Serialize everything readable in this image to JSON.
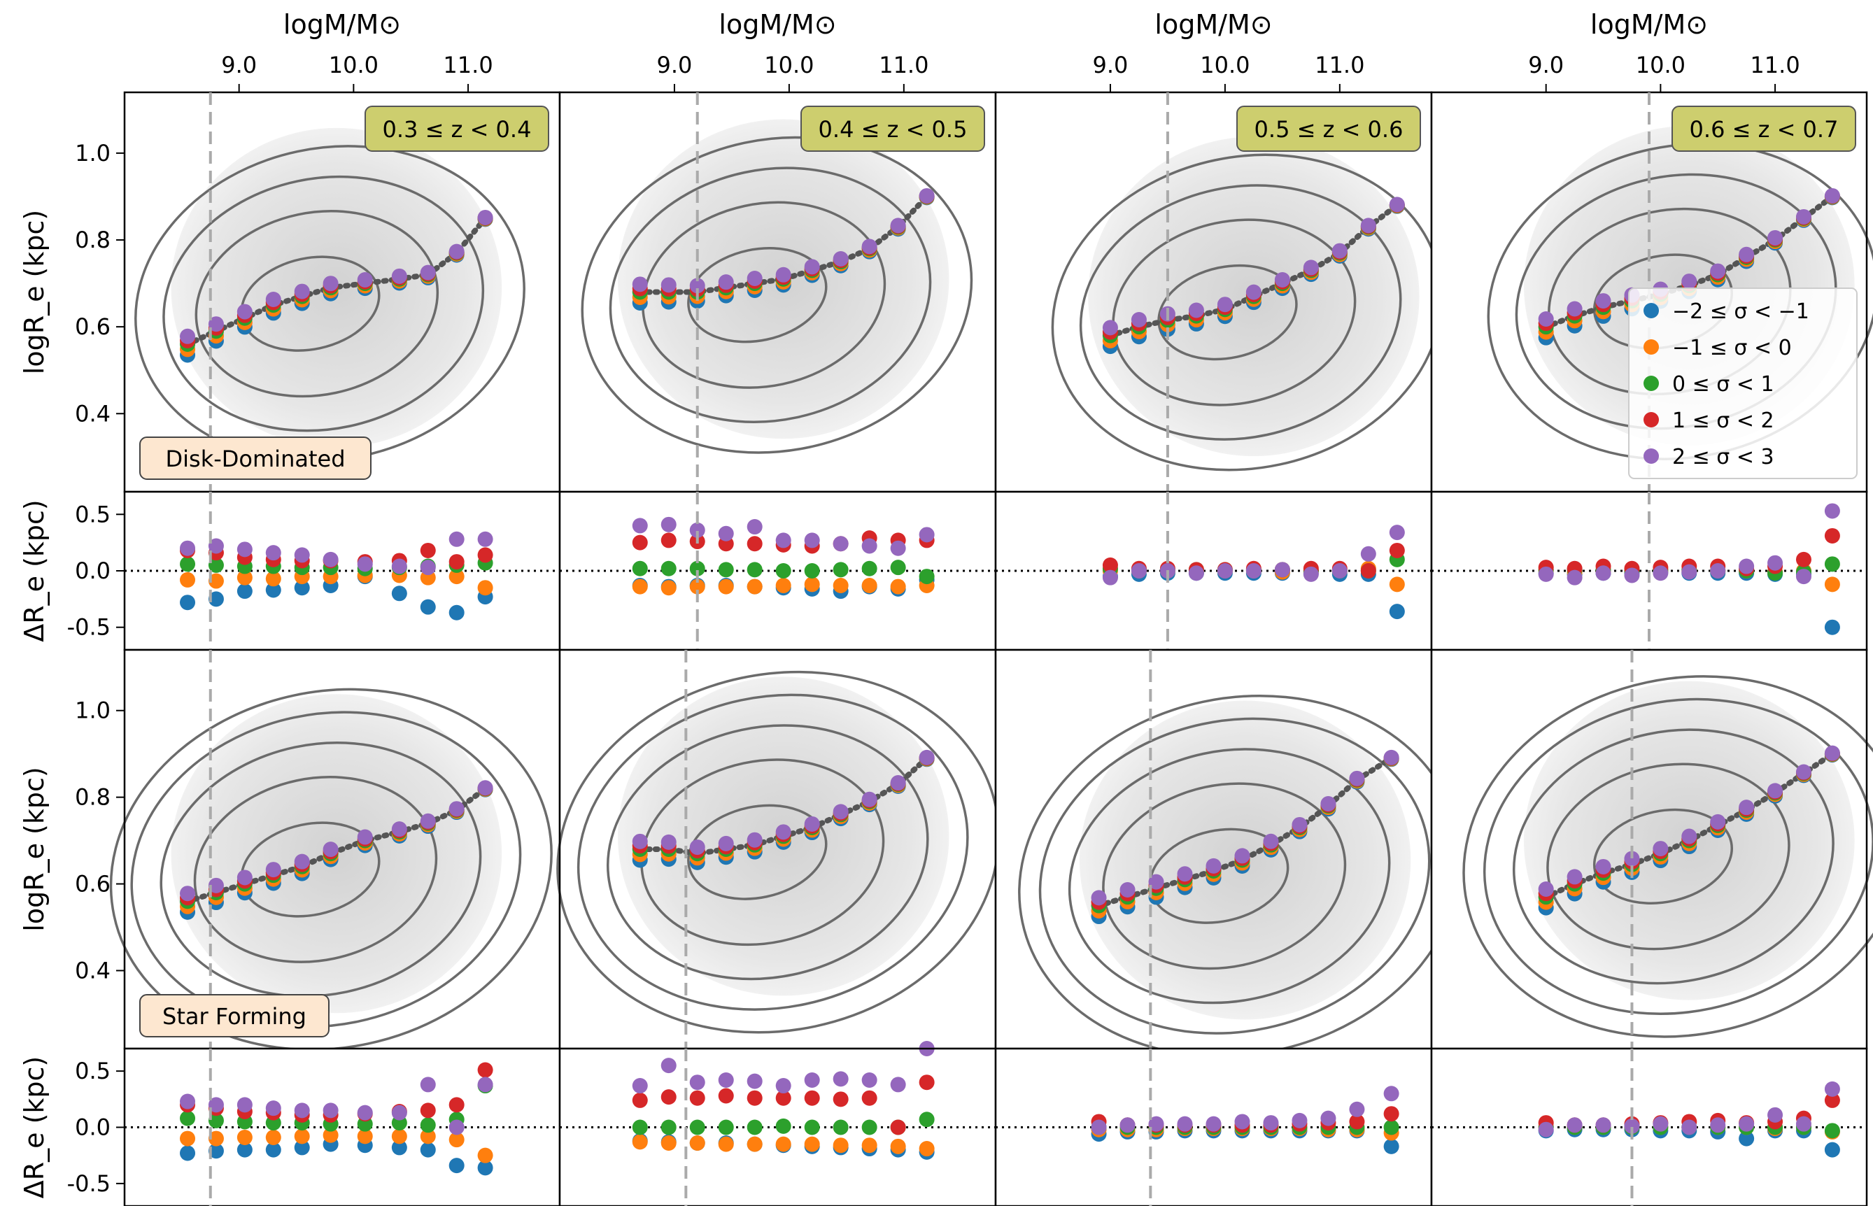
{
  "figure": {
    "top_axis_label": "logM/M⊙",
    "y_label_main": "logR_e (kpc)",
    "y_label_resid": "ΔR_e (kpc)",
    "row_labels": [
      "Disk-Dominated",
      "Star Forming"
    ],
    "redshift_bins": [
      "0.3 ≤ z < 0.4",
      "0.4 ≤ z < 0.5",
      "0.5 ≤ z < 0.6",
      "0.6 ≤ z < 0.7"
    ],
    "top_ticks": [
      "9.0",
      "10.0",
      "11.0"
    ],
    "main_yticks": [
      "0.4",
      "0.6",
      "0.8",
      "1.0"
    ],
    "resid_yticks": [
      "-0.5",
      "0.0",
      "0.5"
    ],
    "legend": [
      "−2 ≤ σ < −1",
      "−1 ≤ σ < 0",
      "0 ≤ σ < 1",
      "1 ≤ σ < 2",
      "2 ≤ σ < 3"
    ],
    "colors": {
      "sigma_m2": "#1f77b4",
      "sigma_m1": "#ff7f0e",
      "sigma_0": "#2ca02c",
      "sigma_1": "#d62728",
      "sigma_2": "#9467bd",
      "badge_fill": "#cdce6e",
      "row_label_fill": "#fde7d0",
      "contour": "#6b6b6b",
      "median_line": "#555555",
      "completeness_line": "#aaaaaa"
    }
  },
  "chart_data": {
    "type": "scatter",
    "x_range": [
      8.0,
      11.8
    ],
    "main_ylim": [
      0.22,
      1.14
    ],
    "resid_ylim": [
      -0.7,
      0.7
    ],
    "panels": [
      {
        "row": "Disk-Dominated",
        "z_bin": "0.3 ≤ z < 0.4",
        "mass_limit": 8.75,
        "x": [
          8.55,
          8.8,
          9.05,
          9.3,
          9.55,
          9.8,
          10.1,
          10.4,
          10.65,
          10.9,
          11.15
        ],
        "median": [
          0.56,
          0.59,
          0.62,
          0.65,
          0.67,
          0.69,
          0.7,
          0.71,
          0.72,
          0.77,
          0.85
        ],
        "resid": {
          "sigma_m2": [
            -0.28,
            -0.25,
            -0.18,
            -0.17,
            -0.15,
            -0.13,
            -0.05,
            -0.2,
            -0.32,
            -0.37,
            -0.23
          ],
          "sigma_m1": [
            -0.08,
            -0.09,
            -0.06,
            -0.07,
            -0.05,
            -0.05,
            -0.04,
            -0.04,
            -0.06,
            -0.05,
            -0.15
          ],
          "sigma_0": [
            0.06,
            0.05,
            0.04,
            0.04,
            0.03,
            0.03,
            0.02,
            0.03,
            0.04,
            0.05,
            0.07
          ],
          "sigma_1": [
            0.18,
            0.16,
            0.12,
            0.1,
            0.09,
            0.09,
            0.08,
            0.09,
            0.18,
            0.08,
            0.14
          ],
          "sigma_2": [
            0.2,
            0.22,
            0.19,
            0.16,
            0.14,
            0.1,
            0.06,
            0.04,
            0.03,
            0.28,
            0.28
          ]
        }
      },
      {
        "row": "Disk-Dominated",
        "z_bin": "0.4 ≤ z < 0.5",
        "mass_limit": 9.2,
        "x": [
          8.7,
          8.95,
          9.2,
          9.45,
          9.7,
          9.95,
          10.2,
          10.45,
          10.7,
          10.95,
          11.2
        ],
        "median": [
          0.68,
          0.68,
          0.68,
          0.69,
          0.7,
          0.71,
          0.73,
          0.75,
          0.78,
          0.83,
          0.9
        ],
        "resid": {
          "sigma_m2": [
            -0.13,
            -0.14,
            -0.13,
            -0.13,
            -0.14,
            -0.15,
            -0.16,
            -0.18,
            -0.14,
            -0.16,
            -0.08
          ],
          "sigma_m1": [
            -0.14,
            -0.15,
            -0.14,
            -0.14,
            -0.14,
            -0.13,
            -0.12,
            -0.13,
            -0.13,
            -0.14,
            -0.13
          ],
          "sigma_0": [
            0.02,
            0.02,
            0.02,
            0.01,
            0.01,
            0.0,
            0.0,
            0.01,
            0.02,
            0.03,
            -0.05
          ],
          "sigma_1": [
            0.25,
            0.27,
            0.26,
            0.24,
            0.24,
            0.23,
            0.22,
            0.24,
            0.29,
            0.27,
            0.27
          ],
          "sigma_2": [
            0.4,
            0.41,
            0.36,
            0.33,
            0.39,
            0.27,
            0.27,
            0.24,
            0.22,
            0.2,
            0.32
          ]
        }
      },
      {
        "row": "Disk-Dominated",
        "z_bin": "0.5 ≤ z < 0.6",
        "mass_limit": 9.5,
        "x": [
          9.0,
          9.25,
          9.5,
          9.75,
          10.0,
          10.25,
          10.5,
          10.75,
          11.0,
          11.25,
          11.5
        ],
        "median": [
          0.58,
          0.6,
          0.615,
          0.625,
          0.64,
          0.67,
          0.7,
          0.73,
          0.77,
          0.83,
          0.88
        ],
        "resid": {
          "sigma_m2": [
            -0.05,
            -0.03,
            -0.02,
            -0.02,
            -0.02,
            -0.02,
            -0.02,
            -0.02,
            -0.03,
            -0.03,
            -0.36
          ],
          "sigma_m1": [
            0.0,
            0.0,
            0.0,
            0.0,
            0.0,
            0.0,
            -0.01,
            -0.01,
            0.0,
            0.02,
            -0.12
          ],
          "sigma_0": [
            0.02,
            0.01,
            0.01,
            0.01,
            0.01,
            0.01,
            0.01,
            0.0,
            0.0,
            0.0,
            0.1
          ],
          "sigma_1": [
            0.05,
            0.02,
            0.02,
            0.01,
            0.01,
            0.02,
            0.01,
            0.02,
            0.02,
            0.0,
            0.18
          ],
          "sigma_2": [
            -0.06,
            0.0,
            0.0,
            -0.02,
            0.0,
            0.0,
            0.01,
            -0.03,
            0.0,
            0.15,
            0.34
          ]
        }
      },
      {
        "row": "Disk-Dominated",
        "z_bin": "0.6 ≤ z < 0.7",
        "mass_limit": 9.9,
        "x": [
          9.0,
          9.25,
          9.5,
          9.75,
          10.0,
          10.25,
          10.5,
          10.75,
          11.0,
          11.25,
          11.5
        ],
        "median": [
          0.6,
          0.625,
          0.645,
          0.66,
          0.675,
          0.695,
          0.72,
          0.76,
          0.8,
          0.85,
          0.9
        ],
        "resid": {
          "sigma_m2": [
            -0.02,
            -0.03,
            -0.02,
            -0.02,
            -0.01,
            -0.02,
            -0.02,
            -0.02,
            -0.03,
            -0.03,
            -0.5
          ],
          "sigma_m1": [
            0.0,
            -0.01,
            0.0,
            0.0,
            0.0,
            0.0,
            0.0,
            0.0,
            -0.01,
            0.0,
            -0.12
          ],
          "sigma_0": [
            0.01,
            0.01,
            0.01,
            0.0,
            0.01,
            0.01,
            0.0,
            0.0,
            -0.02,
            -0.01,
            0.06
          ],
          "sigma_1": [
            0.03,
            0.02,
            0.04,
            0.02,
            0.03,
            0.04,
            0.04,
            0.02,
            0.04,
            0.1,
            0.31
          ],
          "sigma_2": [
            -0.03,
            -0.06,
            -0.02,
            -0.04,
            -0.02,
            -0.01,
            0.0,
            0.04,
            0.07,
            -0.05,
            0.53
          ]
        }
      },
      {
        "row": "Star Forming",
        "z_bin": "0.3 ≤ z < 0.4",
        "mass_limit": 8.75,
        "x": [
          8.55,
          8.8,
          9.05,
          9.3,
          9.55,
          9.8,
          10.1,
          10.4,
          10.65,
          10.9,
          11.15
        ],
        "median": [
          0.56,
          0.58,
          0.6,
          0.62,
          0.64,
          0.67,
          0.7,
          0.72,
          0.74,
          0.77,
          0.82
        ],
        "resid": {
          "sigma_m2": [
            -0.23,
            -0.21,
            -0.2,
            -0.2,
            -0.18,
            -0.15,
            -0.16,
            -0.18,
            -0.2,
            -0.34,
            -0.36
          ],
          "sigma_m1": [
            -0.1,
            -0.1,
            -0.09,
            -0.09,
            -0.08,
            -0.07,
            -0.08,
            -0.08,
            -0.08,
            -0.11,
            -0.25
          ],
          "sigma_0": [
            0.08,
            0.06,
            0.05,
            0.04,
            0.04,
            0.03,
            0.03,
            0.04,
            0.02,
            0.07,
            0.37
          ],
          "sigma_1": [
            0.2,
            0.17,
            0.14,
            0.13,
            0.11,
            0.11,
            0.12,
            0.14,
            0.15,
            0.2,
            0.51
          ],
          "sigma_2": [
            0.23,
            0.2,
            0.2,
            0.17,
            0.15,
            0.15,
            0.13,
            0.13,
            0.38,
            0.0,
            0.38
          ]
        }
      },
      {
        "row": "Star Forming",
        "z_bin": "0.4 ≤ z < 0.5",
        "mass_limit": 9.1,
        "x": [
          8.7,
          8.95,
          9.2,
          9.45,
          9.7,
          9.95,
          10.2,
          10.45,
          10.7,
          10.95,
          11.2
        ],
        "median": [
          0.68,
          0.68,
          0.67,
          0.68,
          0.69,
          0.71,
          0.73,
          0.76,
          0.79,
          0.83,
          0.89
        ],
        "resid": {
          "sigma_m2": [
            -0.12,
            -0.13,
            -0.14,
            -0.14,
            -0.15,
            -0.16,
            -0.17,
            -0.18,
            -0.19,
            -0.2,
            -0.22
          ],
          "sigma_m1": [
            -0.13,
            -0.14,
            -0.14,
            -0.15,
            -0.15,
            -0.15,
            -0.15,
            -0.16,
            -0.16,
            -0.17,
            -0.19
          ],
          "sigma_0": [
            0.0,
            0.0,
            0.0,
            0.0,
            0.0,
            0.01,
            0.0,
            0.0,
            0.0,
            0.0,
            0.07
          ],
          "sigma_1": [
            0.24,
            0.27,
            0.26,
            0.28,
            0.26,
            0.26,
            0.26,
            0.25,
            0.26,
            0.0,
            0.4
          ],
          "sigma_2": [
            0.37,
            0.55,
            0.4,
            0.42,
            0.41,
            0.37,
            0.42,
            0.43,
            0.42,
            0.38,
            0.7
          ]
        }
      },
      {
        "row": "Star Forming",
        "z_bin": "0.5 ≤ z < 0.6",
        "mass_limit": 9.35,
        "x": [
          8.9,
          9.15,
          9.4,
          9.65,
          9.9,
          10.15,
          10.4,
          10.65,
          10.9,
          11.15,
          11.45
        ],
        "median": [
          0.55,
          0.57,
          0.59,
          0.61,
          0.63,
          0.655,
          0.69,
          0.73,
          0.78,
          0.84,
          0.89
        ],
        "resid": {
          "sigma_m2": [
            -0.06,
            -0.04,
            -0.04,
            -0.03,
            -0.03,
            -0.03,
            -0.03,
            -0.03,
            -0.03,
            -0.03,
            -0.17
          ],
          "sigma_m1": [
            -0.02,
            -0.02,
            -0.02,
            -0.01,
            -0.01,
            -0.01,
            -0.01,
            -0.01,
            -0.02,
            -0.02,
            -0.05
          ],
          "sigma_0": [
            0.0,
            0.0,
            0.0,
            0.0,
            0.0,
            0.0,
            0.0,
            0.0,
            0.0,
            0.0,
            0.0
          ],
          "sigma_1": [
            0.05,
            0.02,
            0.02,
            0.02,
            0.02,
            0.02,
            0.02,
            0.03,
            0.04,
            0.05,
            0.12
          ],
          "sigma_2": [
            0.0,
            0.02,
            0.03,
            0.03,
            0.03,
            0.05,
            0.04,
            0.06,
            0.08,
            0.16,
            0.3
          ]
        }
      },
      {
        "row": "Star Forming",
        "z_bin": "0.6 ≤ z < 0.7",
        "mass_limit": 9.75,
        "x": [
          9.0,
          9.25,
          9.5,
          9.75,
          10.0,
          10.25,
          10.5,
          10.75,
          11.0,
          11.25,
          11.5
        ],
        "median": [
          0.57,
          0.6,
          0.625,
          0.645,
          0.67,
          0.7,
          0.735,
          0.77,
          0.81,
          0.855,
          0.9
        ],
        "resid": {
          "sigma_m2": [
            -0.03,
            -0.02,
            -0.02,
            -0.02,
            -0.03,
            -0.03,
            -0.04,
            -0.1,
            -0.03,
            -0.03,
            -0.2
          ],
          "sigma_m1": [
            0.0,
            0.0,
            0.0,
            0.0,
            0.0,
            0.0,
            0.0,
            0.0,
            -0.01,
            0.0,
            -0.04
          ],
          "sigma_0": [
            0.0,
            0.0,
            0.0,
            0.0,
            0.0,
            0.0,
            0.0,
            0.0,
            0.0,
            0.0,
            -0.03
          ],
          "sigma_1": [
            0.04,
            0.02,
            0.02,
            0.03,
            0.04,
            0.05,
            0.06,
            0.04,
            0.05,
            0.08,
            0.24
          ],
          "sigma_2": [
            -0.02,
            0.02,
            0.02,
            0.01,
            0.03,
            0.0,
            0.02,
            0.03,
            0.11,
            0.03,
            0.34
          ]
        }
      }
    ]
  }
}
